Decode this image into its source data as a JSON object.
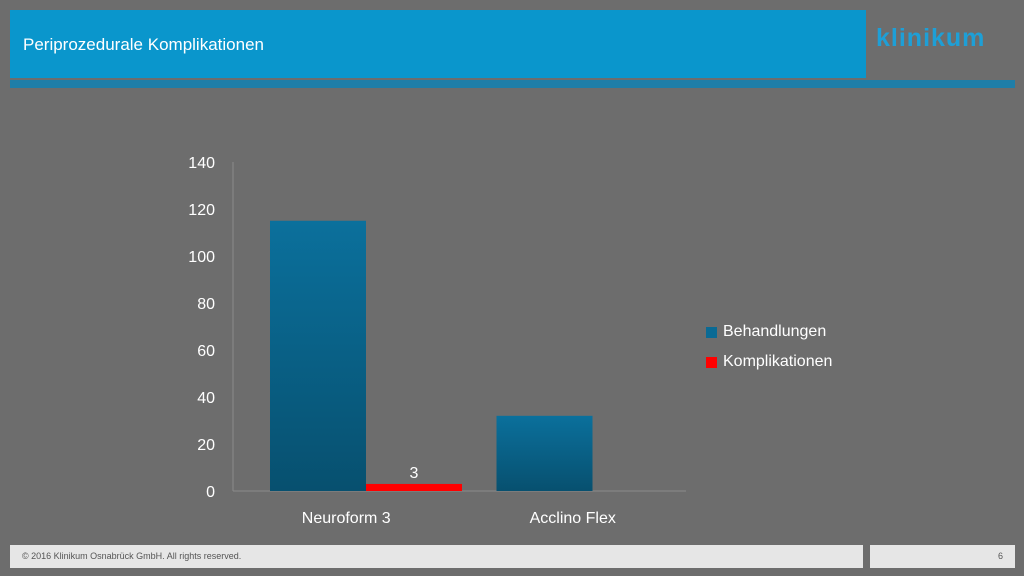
{
  "slide": {
    "title": "Periprozedurale Komplikationen",
    "logo": "klinikum",
    "footer": "© 2016 Klinikum Osnabrück GmbH. All rights reserved.",
    "page_number": "6"
  },
  "colors": {
    "background": "#6d6d6d",
    "title_bar": "#0a96cc",
    "behandlungen": "#0a6a94",
    "komplikationen": "#ff0000"
  },
  "chart_data": {
    "type": "bar",
    "categories": [
      "Neuroform 3",
      "Acclino Flex"
    ],
    "series": [
      {
        "name": "Behandlungen",
        "values": [
          115,
          32
        ]
      },
      {
        "name": "Komplikationen",
        "values": [
          3,
          null
        ]
      }
    ],
    "data_labels": [
      {
        "series": "Komplikationen",
        "category": "Neuroform 3",
        "text": "3"
      }
    ],
    "yticks": [
      0,
      20,
      40,
      60,
      80,
      100,
      120,
      140
    ],
    "ylim": [
      0,
      140
    ],
    "legend_position": "right",
    "grid": false
  }
}
